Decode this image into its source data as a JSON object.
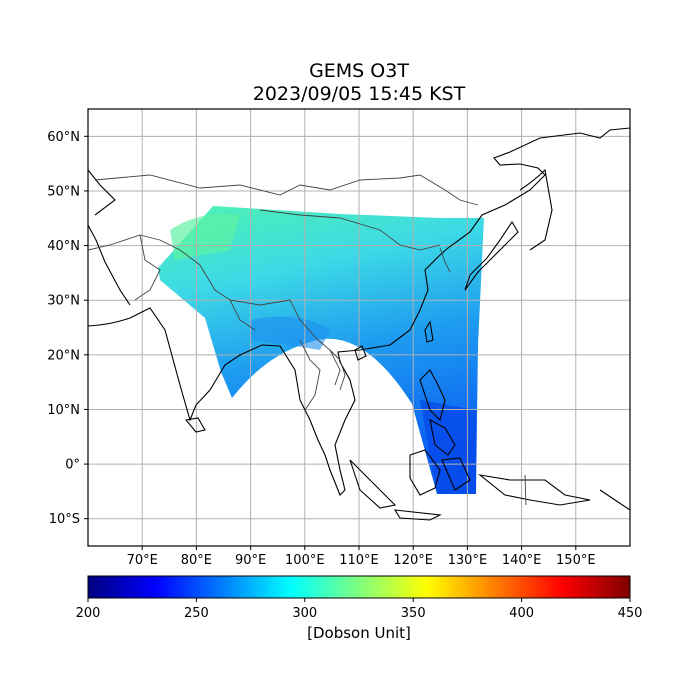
{
  "title": "GEMS O3T",
  "subtitle": "2023/09/05 15:45 KST",
  "map": {
    "projection": "PlateCarree",
    "lon_range": [
      60,
      160
    ],
    "lat_range": [
      -15,
      65
    ],
    "grid": true,
    "lon_ticks": [
      "70°E",
      "80°E",
      "90°E",
      "100°E",
      "110°E",
      "120°E",
      "130°E",
      "140°E",
      "150°E"
    ],
    "lat_ticks": [
      "60°N",
      "50°N",
      "40°N",
      "30°N",
      "20°N",
      "10°N",
      "0°",
      "10°S"
    ],
    "colormap": "jet",
    "no_data_color": "#ffffff"
  },
  "colorbar": {
    "label": "[Dobson Unit]",
    "min": 200,
    "max": 450,
    "ticks": [
      "200",
      "250",
      "300",
      "350",
      "400",
      "450"
    ],
    "colors": [
      "#00007f",
      "#0000ff",
      "#007fff",
      "#00ffff",
      "#7fff7f",
      "#ffff00",
      "#ff7f00",
      "#ff0000",
      "#7f0000"
    ]
  }
}
